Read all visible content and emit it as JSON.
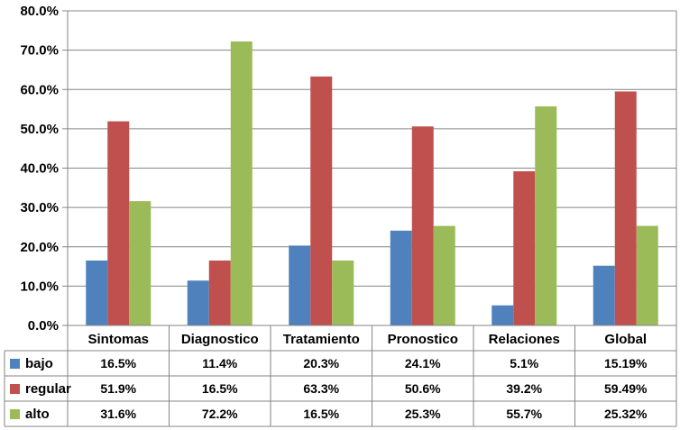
{
  "chart_data": {
    "type": "bar",
    "categories": [
      "Sintomas",
      "Diagnostico",
      "Tratamiento",
      "Pronostico",
      "Relaciones",
      "Global"
    ],
    "ylim": [
      0,
      80
    ],
    "yticks": [
      "0.0%",
      "10.0%",
      "20.0%",
      "30.0%",
      "40.0%",
      "50.0%",
      "60.0%",
      "70.0%",
      "80.0%"
    ],
    "grid": true,
    "legend": "data-table-below",
    "series": [
      {
        "name": "bajo",
        "color": "#4F81BD",
        "values": [
          16.5,
          11.4,
          20.3,
          24.1,
          5.1,
          15.19
        ],
        "labels": [
          "16.5%",
          "11.4%",
          "20.3%",
          "24.1%",
          "5.1%",
          "15.19%"
        ]
      },
      {
        "name": "regular",
        "color": "#C0504D",
        "values": [
          51.9,
          16.5,
          63.3,
          50.6,
          39.2,
          59.49
        ],
        "labels": [
          "51.9%",
          "16.5%",
          "63.3%",
          "50.6%",
          "39.2%",
          "59.49%"
        ]
      },
      {
        "name": "alto",
        "color": "#9BBB59",
        "values": [
          31.6,
          72.2,
          16.5,
          25.3,
          55.7,
          25.32
        ],
        "labels": [
          "31.6%",
          "72.2%",
          "16.5%",
          "25.3%",
          "55.7%",
          "25.32%"
        ]
      }
    ]
  }
}
